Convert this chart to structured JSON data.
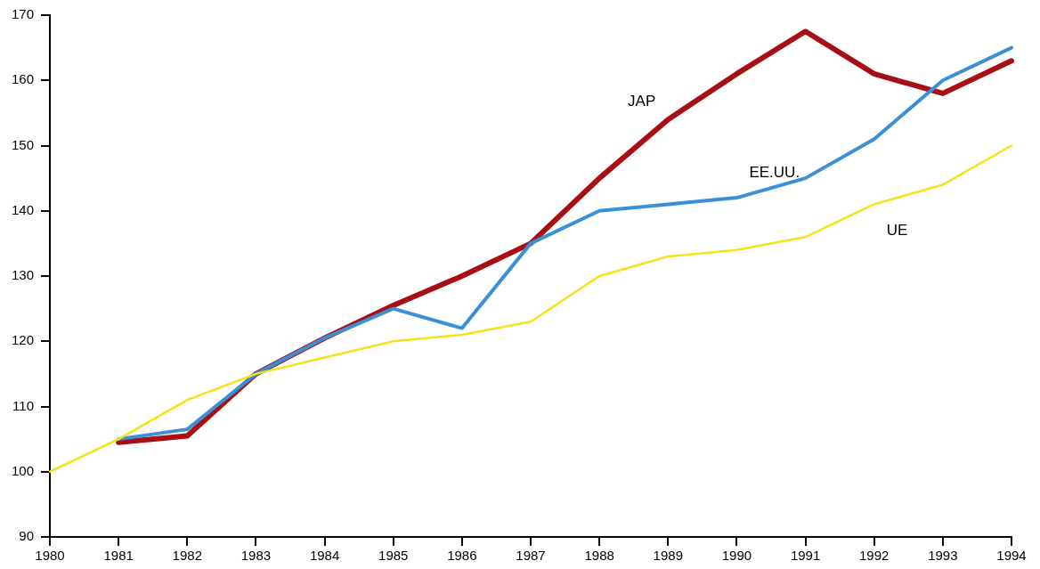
{
  "chart_data": {
    "type": "line",
    "categories": [
      "1980",
      "1981",
      "1982",
      "1983",
      "1984",
      "1985",
      "1986",
      "1987",
      "1988",
      "1989",
      "1990",
      "1991",
      "1992",
      "1993",
      "1994"
    ],
    "series": [
      {
        "name": "JAP",
        "color": "#a80f14",
        "values": [
          null,
          104.5,
          105.5,
          115,
          120.5,
          125.5,
          130,
          135,
          145,
          154,
          161,
          167.5,
          161,
          158,
          163
        ]
      },
      {
        "name": "EE.UU.",
        "color": "#3b8fd6",
        "values": [
          null,
          105,
          106.5,
          115,
          120.5,
          125,
          122,
          135,
          140,
          141,
          142,
          145,
          151,
          160,
          165
        ]
      },
      {
        "name": "UE",
        "color": "#f5e31a",
        "values": [
          100,
          105,
          111,
          115,
          117.5,
          120,
          121,
          123,
          130,
          133,
          134,
          136,
          141,
          144,
          150
        ]
      }
    ],
    "ylim": [
      90,
      170
    ],
    "yticks": [
      90,
      100,
      110,
      120,
      130,
      140,
      150,
      160,
      170
    ],
    "grid": false,
    "legend": false,
    "marker": "none",
    "line_style": "solid"
  }
}
